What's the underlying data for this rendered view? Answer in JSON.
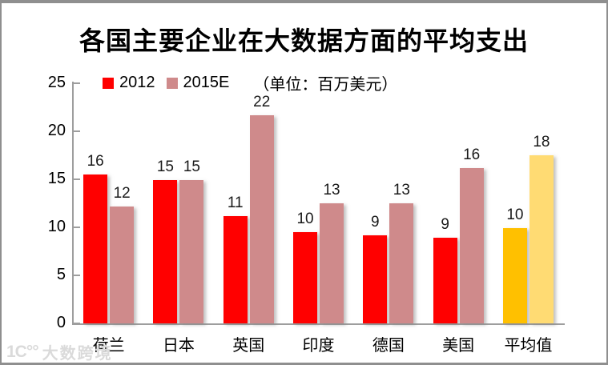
{
  "title": "各国主要企业在大数据方面的平均支出",
  "legend": {
    "series1_label": "2012",
    "series2_label": "2015E",
    "unit_note": "（单位：百万美元）"
  },
  "watermark": {
    "logo_text": "1C°°",
    "text": "大数跨境"
  },
  "colors": {
    "series_2012": "#FF0000",
    "series_2015e": "#CF8A8B",
    "highlight_2012": "#FFC000",
    "highlight_2015e": "#FFDB73",
    "axis": "#9E9E9E",
    "frame_border": "#8F8F8F",
    "text": "#1A1A1A",
    "watermark": "#DADADA"
  },
  "chart_data": {
    "type": "bar",
    "title": "各国主要企业在大数据方面的平均支出",
    "unit": "百万美元",
    "xlabel": "",
    "ylabel": "",
    "categories": [
      "荷兰",
      "日本",
      "英国",
      "印度",
      "德国",
      "美国",
      "平均值"
    ],
    "series": [
      {
        "name": "2012",
        "values": [
          16,
          15,
          11,
          10,
          9,
          9,
          10
        ],
        "bar_heights": [
          15.5,
          14.9,
          11.2,
          9.5,
          9.2,
          8.9,
          9.9
        ],
        "color": "#FF0000"
      },
      {
        "name": "2015E",
        "values": [
          12,
          15,
          22,
          13,
          13,
          16,
          18
        ],
        "bar_heights": [
          12.2,
          14.9,
          21.7,
          12.5,
          12.5,
          16.2,
          17.5
        ],
        "color": "#CF8A8B"
      }
    ],
    "highlight_category": "平均值",
    "highlight_colors": [
      "#FFC000",
      "#FFDB73"
    ],
    "ylim": [
      0,
      25
    ],
    "yticks": [
      0,
      5,
      10,
      15,
      20,
      25
    ],
    "legend_position": "top-left",
    "grid": false,
    "data_labels": true
  }
}
